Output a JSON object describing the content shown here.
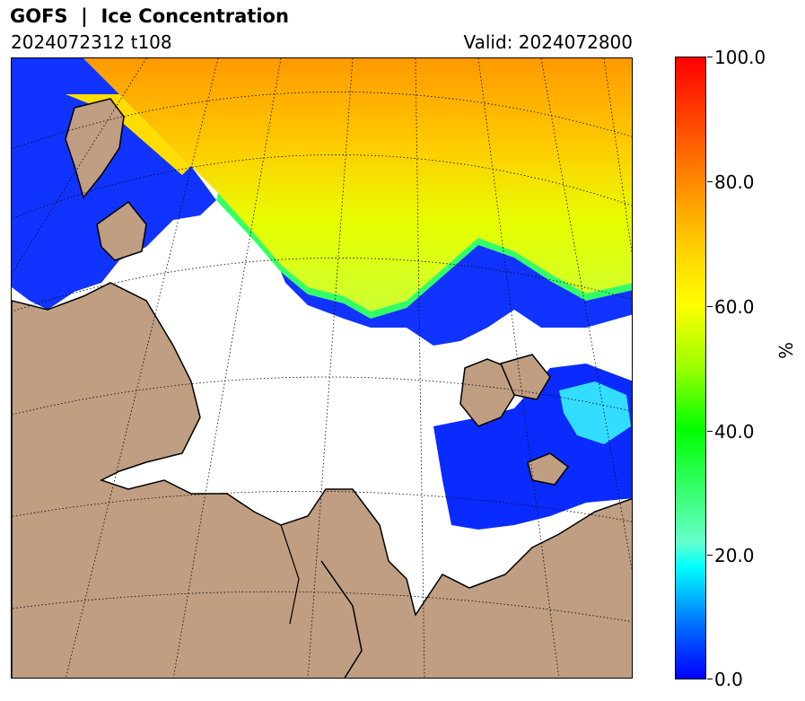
{
  "header": {
    "title": "GOFS  |  Ice Concentration",
    "run": "2024072312 t108",
    "valid": "Valid: 2024072800"
  },
  "colorbar": {
    "unit": "%",
    "ticks": [
      "100.0",
      "80.0",
      "60.0",
      "40.0",
      "20.0",
      "0.0"
    ],
    "range": [
      0,
      100
    ]
  },
  "colors": {
    "land": "#bf9e82",
    "ocean": "#ffffff",
    "ice_low": "#0000ff",
    "ice_mid": "#ffff00",
    "ice_high": "#ff8800"
  }
}
